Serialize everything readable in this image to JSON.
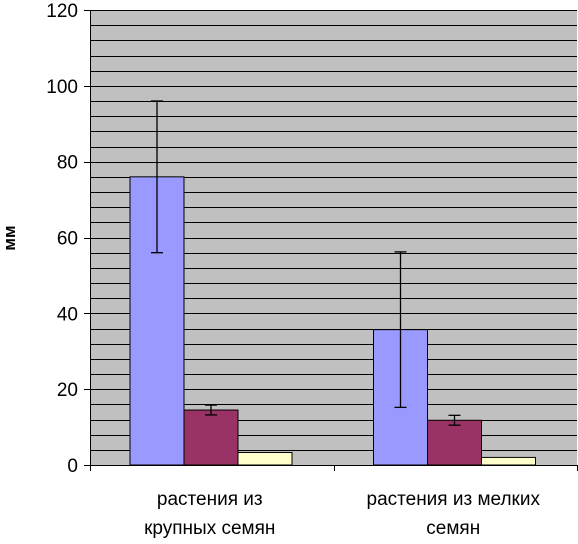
{
  "chart_data": {
    "type": "bar",
    "title": "",
    "xlabel": "",
    "ylabel": "мм",
    "ylim": [
      0,
      120
    ],
    "yticks": [
      0,
      20,
      40,
      60,
      80,
      100,
      120
    ],
    "grid": true,
    "minor_grid_step": 4,
    "categories": [
      [
        "растения из",
        "крупных семян"
      ],
      [
        "растения из мелких",
        "семян"
      ]
    ],
    "series": [
      {
        "color": "#9999ff",
        "values": [
          76,
          35.7
        ],
        "error": [
          20,
          20.5
        ]
      },
      {
        "color": "#993366",
        "values": [
          14.5,
          11.8
        ],
        "error": [
          1.3,
          1.3
        ]
      },
      {
        "color": "#ffffcc",
        "values": [
          3.3,
          2.0
        ],
        "error": [
          0,
          0
        ]
      }
    ],
    "colors": {
      "plot_background": "#c0c0c0",
      "grid": "#000000",
      "axis": "#000000"
    }
  }
}
